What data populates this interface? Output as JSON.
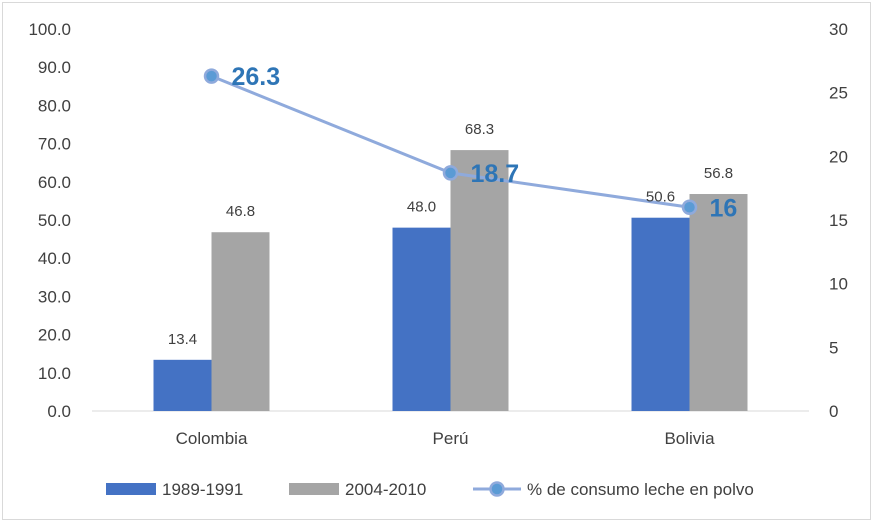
{
  "chart_data": {
    "type": "bar",
    "title": "",
    "categories": [
      "Colombia",
      "Perú",
      "Bolivia"
    ],
    "series": [
      {
        "name": "1989-1991",
        "type": "bar",
        "axis": "left",
        "color": "#4472c4",
        "values": [
          13.4,
          48.0,
          50.6
        ],
        "labels": [
          "13.4",
          "48.0",
          "50.6"
        ]
      },
      {
        "name": "2004-2010",
        "type": "bar",
        "axis": "left",
        "color": "#a5a5a5",
        "values": [
          46.8,
          68.3,
          56.8
        ],
        "labels": [
          "46.8",
          "68.3",
          "56.8"
        ]
      },
      {
        "name": "% de consumo leche en polvo",
        "type": "line",
        "axis": "right",
        "color": "#8faadc",
        "values": [
          26.3,
          18.7,
          16
        ],
        "labels": [
          "26.3",
          "18.7",
          "16"
        ]
      }
    ],
    "y_left": {
      "min": 0,
      "max": 100,
      "step": 10,
      "ticks": [
        "0.0",
        "10.0",
        "20.0",
        "30.0",
        "40.0",
        "50.0",
        "60.0",
        "70.0",
        "80.0",
        "90.0",
        "100.0"
      ]
    },
    "y_right": {
      "min": 0,
      "max": 30,
      "step": 5,
      "ticks": [
        "0",
        "5",
        "10",
        "15",
        "20",
        "25",
        "30"
      ]
    },
    "legend_position": "bottom",
    "grid": false
  }
}
